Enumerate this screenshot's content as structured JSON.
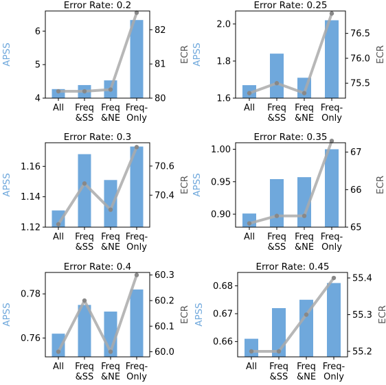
{
  "chart_data": [
    {
      "type": "bar",
      "title": "Error Rate: 0.2",
      "categories": [
        "All",
        "Freq\n&SS",
        "Freq\n&NE",
        "Freq-\nOnly"
      ],
      "ylabel": "APSS",
      "y2label": "ECR",
      "ylim": [
        4.0,
        6.6
      ],
      "yticks": [
        4,
        5,
        6
      ],
      "y2lim": [
        80.0,
        82.55
      ],
      "y2ticks": [
        80,
        81,
        82
      ],
      "series": [
        {
          "axis": "left",
          "type": "bar",
          "values": [
            4.27,
            4.39,
            4.53,
            6.33
          ]
        },
        {
          "axis": "right",
          "type": "line",
          "values": [
            80.2,
            80.2,
            80.25,
            82.5
          ]
        }
      ]
    },
    {
      "type": "bar",
      "title": "Error Rate: 0.25",
      "categories": [
        "All",
        "Freq\n&SS",
        "Freq\n&NE",
        "Freq-\nOnly"
      ],
      "ylabel": "APSS",
      "y2label": "ECR",
      "ylim": [
        1.6,
        2.07
      ],
      "yticks": [
        1.6,
        1.8,
        2.0
      ],
      "y2lim": [
        75.2,
        76.95
      ],
      "y2ticks": [
        75.5,
        76.0,
        76.5
      ],
      "series": [
        {
          "axis": "left",
          "type": "bar",
          "values": [
            1.67,
            1.84,
            1.71,
            2.02
          ]
        },
        {
          "axis": "right",
          "type": "line",
          "values": [
            75.3,
            75.5,
            75.3,
            76.9
          ]
        }
      ]
    },
    {
      "type": "bar",
      "title": "Error Rate: 0.3",
      "categories": [
        "All",
        "Freq\n&SS",
        "Freq\n&NE",
        "Freq-\nOnly"
      ],
      "ylabel": "APSS",
      "y2label": "ECR",
      "ylim": [
        1.12,
        1.1755
      ],
      "yticks": [
        1.12,
        1.14,
        1.16
      ],
      "y2lim": [
        70.18,
        70.76
      ],
      "y2ticks": [
        70.4,
        70.6
      ],
      "series": [
        {
          "axis": "left",
          "type": "bar",
          "values": [
            1.131,
            1.168,
            1.151,
            1.173
          ]
        },
        {
          "axis": "right",
          "type": "line",
          "values": [
            70.2,
            70.48,
            70.3,
            70.73
          ]
        }
      ]
    },
    {
      "type": "bar",
      "title": "Error Rate: 0.35",
      "categories": [
        "All",
        "Freq\n&SS",
        "Freq\n&NE",
        "Freq-\nOnly"
      ],
      "ylabel": "APSS",
      "y2label": "ECR",
      "ylim": [
        0.88,
        1.01
      ],
      "yticks": [
        0.9,
        0.95,
        1.0
      ],
      "y2lim": [
        65.0,
        67.25
      ],
      "y2ticks": [
        65,
        66,
        67
      ],
      "series": [
        {
          "axis": "left",
          "type": "bar",
          "values": [
            0.901,
            0.954,
            0.957,
            1.0
          ]
        },
        {
          "axis": "right",
          "type": "line",
          "values": [
            65.1,
            65.3,
            65.3,
            67.3
          ]
        }
      ]
    },
    {
      "type": "bar",
      "title": "Error Rate: 0.4",
      "categories": [
        "All",
        "Freq\n&SS",
        "Freq\n&NE",
        "Freq-\nOnly"
      ],
      "ylabel": "APSS",
      "y2label": "ECR",
      "ylim": [
        0.7515,
        0.7897
      ],
      "yticks": [
        0.76,
        0.78
      ],
      "y2lim": [
        59.98,
        60.31
      ],
      "y2ticks": [
        60.0,
        60.1,
        60.2,
        60.3
      ],
      "series": [
        {
          "axis": "left",
          "type": "bar",
          "values": [
            0.762,
            0.775,
            0.772,
            0.782
          ]
        },
        {
          "axis": "right",
          "type": "line",
          "values": [
            60.0,
            60.2,
            60.0,
            60.3
          ]
        }
      ]
    },
    {
      "type": "bar",
      "title": "Error Rate: 0.45",
      "categories": [
        "All",
        "Freq\n&SS",
        "Freq\n&NE",
        "Freq-\nOnly"
      ],
      "ylabel": "APSS",
      "y2label": "ECR",
      "ylim": [
        0.6545,
        0.6848
      ],
      "yticks": [
        0.66,
        0.67,
        0.68
      ],
      "y2lim": [
        55.185,
        55.415
      ],
      "y2ticks": [
        55.2,
        55.3,
        55.4
      ],
      "series": [
        {
          "axis": "left",
          "type": "bar",
          "values": [
            0.661,
            0.672,
            0.675,
            0.681
          ]
        },
        {
          "axis": "right",
          "type": "line",
          "values": [
            55.2,
            55.2,
            55.3,
            55.4
          ]
        }
      ]
    }
  ],
  "colors": {
    "bar": "#6fa8dc",
    "line": "#aaaaaa",
    "point": "#888888",
    "left_label": "#6fa8dc",
    "right_label": "#555555"
  }
}
